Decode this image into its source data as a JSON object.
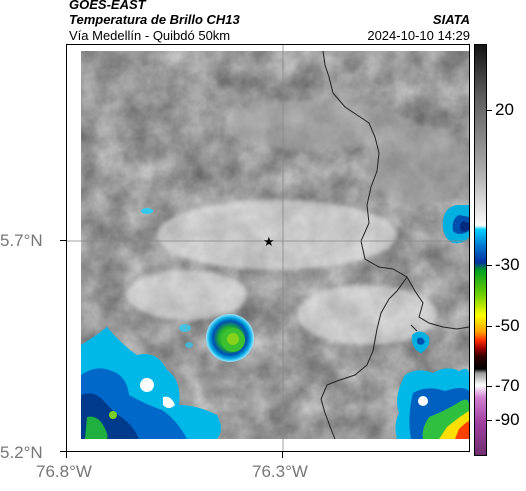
{
  "header": {
    "satellite": "GOES-EAST",
    "product": "Temperatura de Brillo CH13",
    "source": "SIATA",
    "region": "Vía Medellín - Quibdó 50km",
    "datetime": "2024-10-10 14:29"
  },
  "map": {
    "lat_labels": [
      "5.7°N",
      "5.2°N"
    ],
    "lon_labels": [
      "76.8°W",
      "76.3°W"
    ],
    "marker_icon": "star-icon",
    "background_color": "#d8d8d8",
    "cold_cloud_colors": [
      "#00b8e0",
      "#0060c0",
      "#003a8c",
      "#20c040",
      "#9ad000"
    ]
  },
  "colorbar": {
    "labels": [
      "20",
      "-30",
      "-50",
      "-70",
      "-90"
    ],
    "colors": [
      "#000000",
      "#ffffff",
      "#00c0ff",
      "#0030a0",
      "#20c020",
      "#ffff00",
      "#ff4000",
      "#800000",
      "#000000",
      "#ffffff",
      "#a020a0"
    ]
  }
}
